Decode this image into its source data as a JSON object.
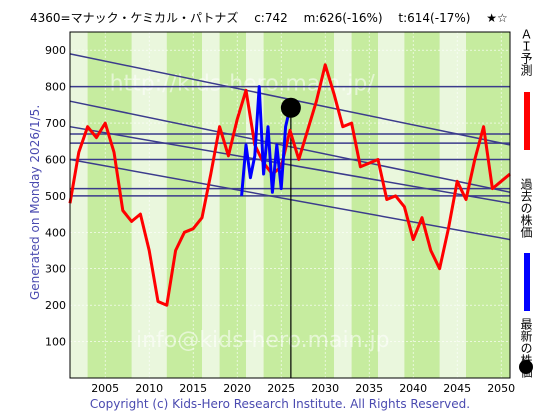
{
  "header": {
    "ticker": "4360=マナック・ケミカル・パトナズ",
    "current": "c:742",
    "m": "m:626(-16%)",
    "t": "t:614(-17%)",
    "stars": "★☆"
  },
  "generated_label": "Generated on Monday 2026/1/5.",
  "copyright": "Copyright (c) Kids-Hero Research Institute. All Rights Reserved.",
  "legend": {
    "ai_forecast": "ＡＩ予測",
    "past_price": "過去の株価",
    "latest_price": "最新の株価",
    "ai_color": "#ff0000",
    "past_color": "#0000ff",
    "latest_color": "#000000"
  },
  "watermarks": {
    "url": "http://kids-hero.main.jp/",
    "email": "info@kids-hero.main.jp"
  },
  "chart_data": {
    "type": "line",
    "xlim": [
      2001,
      2051
    ],
    "ylim": [
      0,
      950
    ],
    "x_ticks": [
      "2005",
      "2010",
      "2015",
      "2020",
      "2025",
      "2030",
      "2035",
      "2040",
      "2045",
      "2050"
    ],
    "y_ticks": [
      "100",
      "200",
      "300",
      "400",
      "500",
      "600",
      "700",
      "800",
      "900"
    ],
    "horizontal_levels": [
      500,
      520,
      600,
      645,
      670,
      800
    ],
    "trend_lines": [
      {
        "from": [
          2001,
          890
        ],
        "to": [
          2051,
          640
        ]
      },
      {
        "from": [
          2001,
          760
        ],
        "to": [
          2051,
          510
        ]
      },
      {
        "from": [
          2001,
          690
        ],
        "to": [
          2051,
          480
        ]
      },
      {
        "from": [
          2001,
          600
        ],
        "to": [
          2051,
          380
        ]
      }
    ],
    "current_marker": {
      "x": 2026.1,
      "y": 742
    },
    "series": [
      {
        "name": "ＡＩ予測",
        "color": "#ff0000",
        "x": [
          2001,
          2002,
          2003,
          2004,
          2005,
          2006,
          2007,
          2008,
          2009,
          2010,
          2011,
          2012,
          2013,
          2014,
          2015,
          2016,
          2017,
          2018,
          2019,
          2020,
          2021,
          2022,
          2023,
          2024,
          2025,
          2026,
          2027,
          2028,
          2029,
          2030,
          2031,
          2032,
          2033,
          2034,
          2035,
          2036,
          2037,
          2038,
          2039,
          2040,
          2041,
          2042,
          2043,
          2044,
          2045,
          2046,
          2047,
          2048,
          2049,
          2050,
          2051
        ],
        "values": [
          480,
          620,
          690,
          660,
          700,
          620,
          460,
          430,
          450,
          350,
          210,
          200,
          350,
          400,
          410,
          440,
          560,
          690,
          610,
          710,
          790,
          640,
          590,
          560,
          580,
          680,
          600,
          680,
          760,
          860,
          780,
          690,
          700,
          580,
          590,
          600,
          490,
          500,
          470,
          380,
          440,
          350,
          300,
          410,
          540,
          490,
          600,
          690,
          520,
          540,
          560
        ]
      },
      {
        "name": "過去の株価",
        "color": "#0000ff",
        "x": [
          2020.5,
          2021,
          2021.5,
          2022,
          2022.5,
          2023,
          2023.5,
          2024,
          2024.5,
          2025,
          2025.5,
          2026
        ],
        "values": [
          500,
          640,
          550,
          610,
          800,
          560,
          690,
          510,
          640,
          520,
          690,
          742
        ]
      }
    ]
  }
}
